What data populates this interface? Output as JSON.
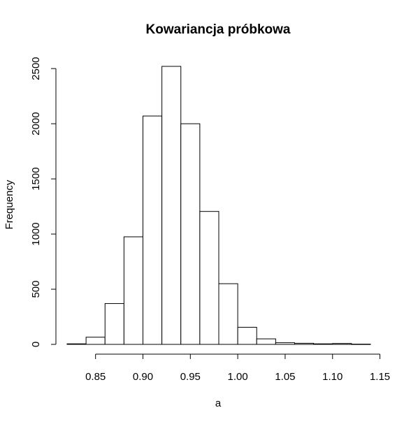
{
  "chart_data": {
    "type": "bar",
    "title": "Kowariancja próbkowa",
    "xlabel": "a",
    "ylabel": "Frequency",
    "bin_edges": [
      0.82,
      0.84,
      0.86,
      0.88,
      0.9,
      0.92,
      0.94,
      0.96,
      0.98,
      1.0,
      1.02,
      1.04,
      1.06,
      1.08,
      1.1,
      1.12,
      1.14
    ],
    "values": [
      5,
      65,
      370,
      975,
      2070,
      2520,
      2000,
      1205,
      550,
      155,
      50,
      15,
      10,
      5,
      8,
      2
    ],
    "x_ticks": [
      0.85,
      0.9,
      0.95,
      1.0,
      1.05,
      1.1,
      1.15
    ],
    "x_tick_labels": [
      "0.85",
      "0.90",
      "0.95",
      "1.00",
      "1.05",
      "1.10",
      "1.15"
    ],
    "y_ticks": [
      0,
      500,
      1000,
      1500,
      2000,
      2500
    ],
    "y_tick_labels": [
      "0",
      "500",
      "1000",
      "1500",
      "2000",
      "2500"
    ],
    "xlim": [
      0.82,
      1.15
    ],
    "ylim": [
      0,
      2520
    ],
    "grid": false,
    "legend": "none",
    "colors": {
      "bar_fill": "#ffffff",
      "bar_stroke": "#000000"
    }
  }
}
